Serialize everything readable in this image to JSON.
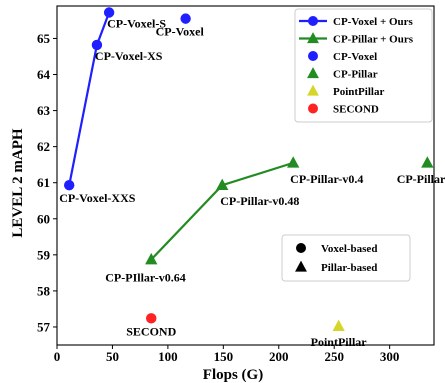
{
  "chart_data": {
    "type": "scatter",
    "title": "",
    "xlabel": "Flops (G)",
    "ylabel": "LEVEL 2 mAPH",
    "xlim": [
      0,
      340
    ],
    "ylim": [
      56.5,
      65.9
    ],
    "xticks": [
      "0",
      "50",
      "100",
      "150",
      "200",
      "250",
      "300"
    ],
    "yticks": [
      "57",
      "58",
      "59",
      "60",
      "61",
      "62",
      "63",
      "64",
      "65"
    ],
    "grid": false,
    "legend_placement": "top-right",
    "series": [
      {
        "name": "CP-Voxel + Ours",
        "kind": "line",
        "marker": "circle",
        "color": "#1f1fff",
        "points": [
          {
            "label": "CP-Voxel-XXS",
            "x": 11,
            "y": 60.93
          },
          {
            "label": "CP-Voxel-XS",
            "x": 36,
            "y": 64.82
          },
          {
            "label": "CP-Voxel-S",
            "x": 47,
            "y": 65.72
          }
        ]
      },
      {
        "name": "CP-Pillar + Ours",
        "kind": "line",
        "marker": "triangle",
        "color": "#228b22",
        "points": [
          {
            "label": "CP-PIllar-v0.64",
            "x": 85,
            "y": 58.87
          },
          {
            "label": "CP-Pillar-v0.48",
            "x": 149,
            "y": 60.93
          },
          {
            "label": "CP-Pillar-v0.4",
            "x": 213,
            "y": 61.55
          }
        ]
      },
      {
        "name": "CP-Voxel",
        "kind": "point",
        "marker": "circle",
        "color": "#1f1fff",
        "points": [
          {
            "label": "CP-Voxel",
            "x": 116,
            "y": 65.55
          }
        ]
      },
      {
        "name": "CP-Pillar",
        "kind": "point",
        "marker": "triangle",
        "color": "#228b22",
        "points": [
          {
            "label": "CP-Pillar",
            "x": 334,
            "y": 61.55
          }
        ]
      },
      {
        "name": "PointPillar",
        "kind": "point",
        "marker": "triangle",
        "color": "#d6d62a",
        "points": [
          {
            "label": "PointPillar",
            "x": 254,
            "y": 57.02
          }
        ]
      },
      {
        "name": "SECOND",
        "kind": "point",
        "marker": "circle",
        "color": "#ff2222",
        "points": [
          {
            "label": "SECOND",
            "x": 85,
            "y": 57.24
          }
        ]
      }
    ],
    "shape_legend": [
      {
        "label": "Voxel-based",
        "marker": "circle"
      },
      {
        "label": "Pillar-based",
        "marker": "triangle"
      }
    ]
  }
}
